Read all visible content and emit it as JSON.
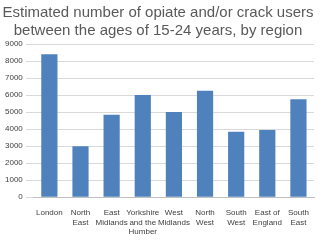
{
  "chart_data": {
    "type": "bar",
    "title": "Estimated number of opiate and/or crack users between the ages of 15-24 years, by region",
    "categories": [
      "London",
      "North East",
      "East Midlands",
      "Yorkshire and the Humber",
      "West Midlands",
      "North West",
      "South West",
      "East of England",
      "South East"
    ],
    "values": [
      8400,
      3000,
      4850,
      6000,
      5000,
      6250,
      3850,
      3950,
      5750
    ],
    "color": "#4f81bd",
    "ylim": [
      0,
      9000
    ],
    "yticks": [
      0,
      1000,
      2000,
      3000,
      4000,
      5000,
      6000,
      7000,
      8000,
      9000
    ],
    "grid": true
  }
}
